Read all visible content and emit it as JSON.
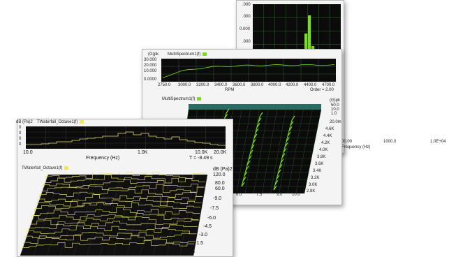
{
  "colors": {
    "plot_bg": "#0b0b0b",
    "green": "#7ddc1f",
    "yellow": "#e8e070",
    "grid": "#2e5a2e",
    "teal": "#2a6b66"
  },
  "window3": {
    "y_ticks": [
      ".000",
      ".000",
      "0.000",
      ".000"
    ],
    "x_ticks": [
      "00.00",
      "1000.0",
      "1.0E+04"
    ],
    "xlabel": "Frequency (Hz)"
  },
  "window2": {
    "top": {
      "title": "MultiSpectrum1(f)",
      "yunit": "(G)pk",
      "y_ticks": [
        "30.000",
        "20.000",
        "10.000",
        "0.0000"
      ],
      "x_ticks": [
        "2750.0",
        "3000.0",
        "3200.0",
        "3400.0",
        "3600.0",
        "3800.0",
        "4000.0",
        "4200.0",
        "4400.0",
        "4700.0"
      ],
      "xlabel": "RPM",
      "order_text": "Order = 2.00"
    },
    "bottom": {
      "title": "MultiSpectrum1(f)",
      "zunit": "(G)pk",
      "z_ticks": [
        "50.0",
        "10.0",
        "1.0",
        "20.0m"
      ],
      "rpm_ticks": [
        "4.6K",
        "4.4K",
        "4.2K",
        "4.0K",
        "3.8K",
        "3.6K",
        "3.4K",
        "3.2K",
        "3.0K",
        "2.8K"
      ],
      "x_ticks": [
        "6.0",
        "7.5",
        "9.0",
        "10.0"
      ]
    }
  },
  "window1": {
    "top": {
      "yunit": "dB (Pa)2",
      "title": "TWaterfall_Octave1(f)",
      "y_ticks": [
        "0",
        "0",
        "0",
        "0"
      ],
      "x_ticks": [
        "10.0",
        "1.0K",
        "10.0K",
        "20.0K"
      ],
      "xlabel": "Frequency (Hz)",
      "t_text": "T = -8.49 s"
    },
    "bottom": {
      "title": "TWaterfall_Octave1(f)",
      "zunit": "dB (Pa)2",
      "z_ticks": [
        "120.0",
        "80.0",
        "60.0"
      ],
      "t_ticks": [
        "-9.0",
        "-7.5",
        "-6.0",
        "-4.5",
        "-3.0",
        "-1.5",
        "0"
      ]
    }
  }
}
